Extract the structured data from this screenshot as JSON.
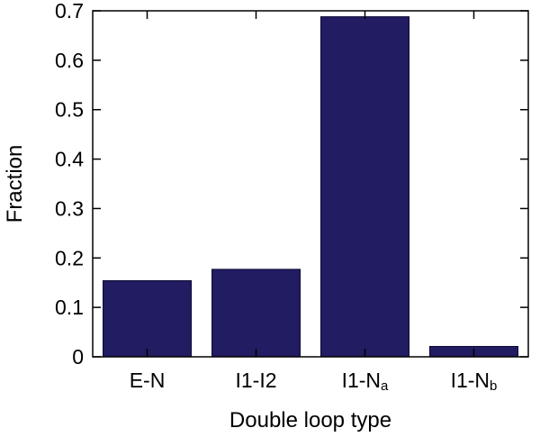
{
  "chart_data": {
    "type": "bar",
    "title": "",
    "xlabel": "Double loop type",
    "ylabel": "Fraction",
    "ylim": [
      0,
      0.7
    ],
    "yticks": [
      {
        "value": 0,
        "label": "0"
      },
      {
        "value": 0.1,
        "label": "0.1"
      },
      {
        "value": 0.2,
        "label": "0.2"
      },
      {
        "value": 0.3,
        "label": "0.3"
      },
      {
        "value": 0.4,
        "label": "0.4"
      },
      {
        "value": 0.5,
        "label": "0.5"
      },
      {
        "value": 0.6,
        "label": "0.6"
      },
      {
        "value": 0.7,
        "label": "0.7"
      }
    ],
    "categories": [
      {
        "main": "E-N",
        "sub": ""
      },
      {
        "main": "I1-I2",
        "sub": ""
      },
      {
        "main": "I1-N",
        "sub": "a"
      },
      {
        "main": "I1-N",
        "sub": "b"
      }
    ],
    "values": [
      0.154,
      0.177,
      0.688,
      0.021
    ],
    "grid": false,
    "legend": "none",
    "bar_color": "#221c62",
    "bar_edge_color": "#0d0a35"
  }
}
